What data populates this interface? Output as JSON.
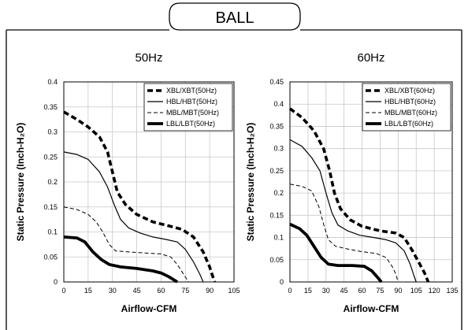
{
  "banner": {
    "title": "BALL"
  },
  "chart_data": [
    {
      "type": "line",
      "title": "50Hz",
      "xlabel": "Airflow-CFM",
      "ylabel": "Static Pressure (Inch-H₂O)",
      "xlim": [
        0,
        105
      ],
      "ylim": [
        0,
        0.4
      ],
      "xticks": [
        0,
        15,
        30,
        45,
        60,
        75,
        90,
        105
      ],
      "yticks": [
        0,
        0.05,
        0.1,
        0.15,
        0.2,
        0.25,
        0.3,
        0.35,
        0.4
      ],
      "grid": true,
      "legend_position": "top-right",
      "series": [
        {
          "name": "XBL/XBT(50Hz)",
          "style": "dashed-thick",
          "points": [
            [
              0,
              0.34
            ],
            [
              8,
              0.325
            ],
            [
              15,
              0.31
            ],
            [
              22,
              0.29
            ],
            [
              27,
              0.26
            ],
            [
              30,
              0.22
            ],
            [
              33,
              0.18
            ],
            [
              38,
              0.155
            ],
            [
              45,
              0.135
            ],
            [
              55,
              0.12
            ],
            [
              65,
              0.112
            ],
            [
              73,
              0.105
            ],
            [
              80,
              0.09
            ],
            [
              86,
              0.06
            ],
            [
              90,
              0.03
            ],
            [
              93,
              0.0
            ]
          ]
        },
        {
          "name": "HBL/HBT(50Hz)",
          "style": "solid",
          "points": [
            [
              0,
              0.26
            ],
            [
              8,
              0.255
            ],
            [
              15,
              0.245
            ],
            [
              22,
              0.22
            ],
            [
              27,
              0.19
            ],
            [
              31,
              0.155
            ],
            [
              35,
              0.125
            ],
            [
              40,
              0.108
            ],
            [
              47,
              0.098
            ],
            [
              55,
              0.09
            ],
            [
              63,
              0.085
            ],
            [
              70,
              0.08
            ],
            [
              75,
              0.065
            ],
            [
              80,
              0.04
            ],
            [
              84,
              0.015
            ],
            [
              86,
              0.0
            ]
          ]
        },
        {
          "name": "MBL/MBT(50Hz)",
          "style": "dashed",
          "points": [
            [
              0,
              0.15
            ],
            [
              8,
              0.145
            ],
            [
              15,
              0.135
            ],
            [
              20,
              0.12
            ],
            [
              24,
              0.1
            ],
            [
              28,
              0.075
            ],
            [
              32,
              0.062
            ],
            [
              40,
              0.06
            ],
            [
              50,
              0.058
            ],
            [
              60,
              0.056
            ],
            [
              66,
              0.05
            ],
            [
              70,
              0.035
            ],
            [
              74,
              0.015
            ],
            [
              77,
              0.0
            ]
          ]
        },
        {
          "name": "LBL/LBT(50Hz)",
          "style": "bold",
          "points": [
            [
              0,
              0.09
            ],
            [
              8,
              0.088
            ],
            [
              13,
              0.08
            ],
            [
              18,
              0.06
            ],
            [
              23,
              0.045
            ],
            [
              28,
              0.035
            ],
            [
              35,
              0.03
            ],
            [
              45,
              0.027
            ],
            [
              55,
              0.022
            ],
            [
              60,
              0.018
            ],
            [
              65,
              0.01
            ],
            [
              70,
              0.0
            ]
          ]
        }
      ]
    },
    {
      "type": "line",
      "title": "60Hz",
      "xlabel": "Airflow-CFM",
      "ylabel": "Static Pressure (Inch-H₂O)",
      "xlim": [
        0,
        135
      ],
      "ylim": [
        0,
        0.45
      ],
      "xticks": [
        0,
        15,
        30,
        45,
        60,
        75,
        90,
        105,
        120,
        135
      ],
      "yticks": [
        0,
        0.05,
        0.1,
        0.15,
        0.2,
        0.25,
        0.3,
        0.35,
        0.4,
        0.45
      ],
      "grid": true,
      "legend_position": "top-right",
      "series": [
        {
          "name": "XBL/XBT(60Hz)",
          "style": "dashed-thick",
          "points": [
            [
              0,
              0.39
            ],
            [
              10,
              0.37
            ],
            [
              20,
              0.34
            ],
            [
              28,
              0.3
            ],
            [
              33,
              0.25
            ],
            [
              37,
              0.2
            ],
            [
              42,
              0.165
            ],
            [
              50,
              0.14
            ],
            [
              60,
              0.125
            ],
            [
              75,
              0.115
            ],
            [
              88,
              0.11
            ],
            [
              95,
              0.1
            ],
            [
              102,
              0.07
            ],
            [
              108,
              0.04
            ],
            [
              112,
              0.02
            ],
            [
              115,
              0.0
            ]
          ]
        },
        {
          "name": "HBL/HBT(60Hz)",
          "style": "solid",
          "points": [
            [
              0,
              0.32
            ],
            [
              10,
              0.305
            ],
            [
              18,
              0.28
            ],
            [
              25,
              0.25
            ],
            [
              30,
              0.2
            ],
            [
              35,
              0.155
            ],
            [
              40,
              0.128
            ],
            [
              48,
              0.115
            ],
            [
              58,
              0.105
            ],
            [
              70,
              0.1
            ],
            [
              80,
              0.095
            ],
            [
              88,
              0.088
            ],
            [
              95,
              0.07
            ],
            [
              100,
              0.04
            ],
            [
              103,
              0.015
            ],
            [
              105,
              0.0
            ]
          ]
        },
        {
          "name": "MBL/MBT(60Hz)",
          "style": "dashed",
          "points": [
            [
              0,
              0.22
            ],
            [
              10,
              0.215
            ],
            [
              18,
              0.205
            ],
            [
              24,
              0.17
            ],
            [
              28,
              0.13
            ],
            [
              32,
              0.095
            ],
            [
              38,
              0.08
            ],
            [
              50,
              0.073
            ],
            [
              60,
              0.068
            ],
            [
              72,
              0.064
            ],
            [
              80,
              0.055
            ],
            [
              85,
              0.035
            ],
            [
              88,
              0.018
            ],
            [
              90,
              0.0
            ]
          ]
        },
        {
          "name": "LBL/LBT(60Hz)",
          "style": "bold",
          "points": [
            [
              0,
              0.13
            ],
            [
              8,
              0.12
            ],
            [
              14,
              0.105
            ],
            [
              20,
              0.08
            ],
            [
              26,
              0.055
            ],
            [
              32,
              0.04
            ],
            [
              40,
              0.037
            ],
            [
              52,
              0.037
            ],
            [
              62,
              0.035
            ],
            [
              68,
              0.025
            ],
            [
              73,
              0.01
            ],
            [
              76,
              0.0
            ]
          ]
        }
      ]
    }
  ]
}
